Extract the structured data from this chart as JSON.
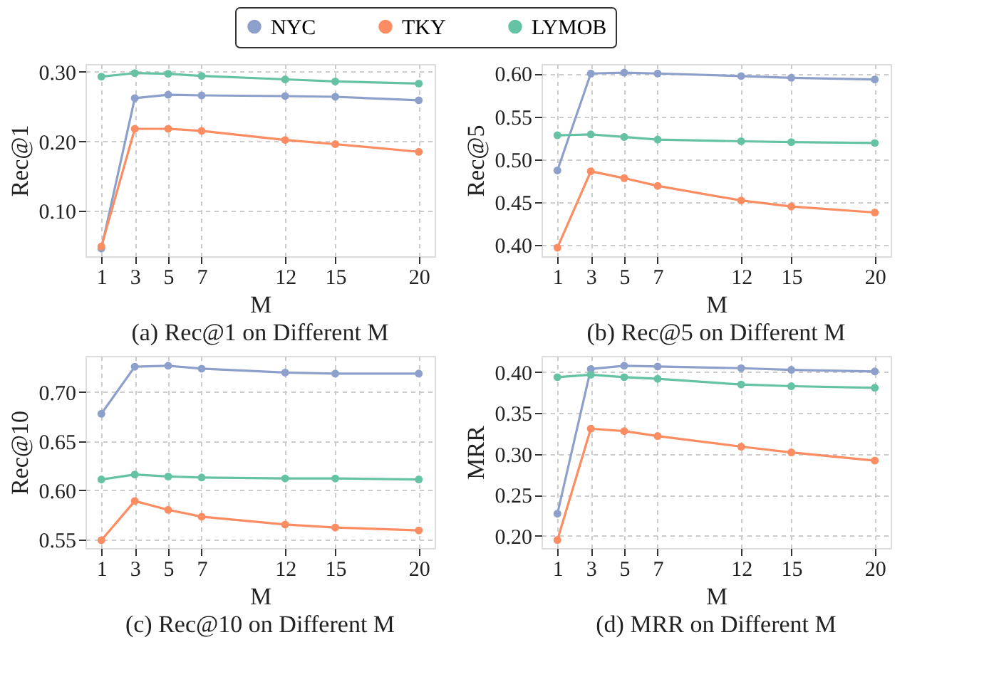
{
  "chart_data": [
    {
      "type": "line",
      "title": "(a) Rec@1 on Different M",
      "xlabel": "M",
      "ylabel": "Rec@1",
      "x": [
        1,
        3,
        5,
        7,
        12,
        15,
        20
      ],
      "xlim": [
        0.05,
        20.95
      ],
      "xticks": [
        1,
        3,
        5,
        7,
        12,
        15,
        20
      ],
      "ylim": [
        0.035,
        0.311
      ],
      "yticks": [
        {
          "value": 0.1,
          "label": "0.10"
        },
        {
          "value": 0.2,
          "label": "0.20"
        },
        {
          "value": 0.3,
          "label": "0.30"
        }
      ],
      "grid": true,
      "legend": "top",
      "marker": "circle",
      "line_style": "solid",
      "series": [
        {
          "name": "NYC",
          "color": "#8da0cb",
          "values": [
            0.046,
            0.262,
            0.267,
            0.266,
            0.265,
            0.264,
            0.259
          ]
        },
        {
          "name": "TKY",
          "color": "#fc8d62",
          "values": [
            0.049,
            0.218,
            0.218,
            0.215,
            0.202,
            0.196,
            0.185
          ]
        },
        {
          "name": "LYMOB",
          "color": "#66c2a5",
          "values": [
            0.293,
            0.298,
            0.297,
            0.294,
            0.289,
            0.286,
            0.283
          ]
        }
      ]
    },
    {
      "type": "line",
      "title": "(b) Rec@5 on Different M",
      "xlabel": "M",
      "ylabel": "Rec@5",
      "x": [
        1,
        3,
        5,
        7,
        12,
        15,
        20
      ],
      "xlim": [
        0.05,
        20.95
      ],
      "xticks": [
        1,
        3,
        5,
        7,
        12,
        15,
        20
      ],
      "ylim": [
        0.387,
        0.611
      ],
      "yticks": [
        {
          "value": 0.4,
          "label": "0.40"
        },
        {
          "value": 0.45,
          "label": "0.45"
        },
        {
          "value": 0.5,
          "label": "0.50"
        },
        {
          "value": 0.55,
          "label": "0.55"
        },
        {
          "value": 0.6,
          "label": "0.60"
        }
      ],
      "grid": true,
      "marker": "circle",
      "line_style": "solid",
      "series": [
        {
          "name": "NYC",
          "color": "#8da0cb",
          "values": [
            0.487,
            0.6,
            0.601,
            0.6,
            0.597,
            0.595,
            0.593
          ]
        },
        {
          "name": "TKY",
          "color": "#fc8d62",
          "values": [
            0.397,
            0.486,
            0.478,
            0.469,
            0.452,
            0.445,
            0.438
          ]
        },
        {
          "name": "LYMOB",
          "color": "#66c2a5",
          "values": [
            0.528,
            0.529,
            0.526,
            0.523,
            0.521,
            0.52,
            0.519
          ]
        }
      ]
    },
    {
      "type": "line",
      "title": "(c) Rec@10 on Different M",
      "xlabel": "M",
      "ylabel": "Rec@10",
      "x": [
        1,
        3,
        5,
        7,
        12,
        15,
        20
      ],
      "xlim": [
        0.05,
        20.95
      ],
      "xticks": [
        1,
        3,
        5,
        7,
        12,
        15,
        20
      ],
      "ylim": [
        0.541,
        0.737
      ],
      "yticks": [
        {
          "value": 0.55,
          "label": "0.55"
        },
        {
          "value": 0.6,
          "label": "0.60"
        },
        {
          "value": 0.65,
          "label": "0.65"
        },
        {
          "value": 0.7,
          "label": "0.70"
        }
      ],
      "grid": true,
      "marker": "circle",
      "line_style": "solid",
      "series": [
        {
          "name": "NYC",
          "color": "#8da0cb",
          "values": [
            0.678,
            0.726,
            0.727,
            0.724,
            0.72,
            0.719,
            0.719
          ]
        },
        {
          "name": "TKY",
          "color": "#fc8d62",
          "values": [
            0.549,
            0.589,
            0.58,
            0.573,
            0.565,
            0.562,
            0.559
          ]
        },
        {
          "name": "LYMOB",
          "color": "#66c2a5",
          "values": [
            0.611,
            0.616,
            0.614,
            0.613,
            0.612,
            0.612,
            0.611
          ]
        }
      ]
    },
    {
      "type": "line",
      "title": "(d) MRR on Different M",
      "xlabel": "M",
      "ylabel": "MRR",
      "x": [
        1,
        3,
        5,
        7,
        12,
        15,
        20
      ],
      "xlim": [
        0.05,
        20.95
      ],
      "xticks": [
        1,
        3,
        5,
        7,
        12,
        15,
        20
      ],
      "ylim": [
        0.185,
        0.42
      ],
      "yticks": [
        {
          "value": 0.2,
          "label": "0.20"
        },
        {
          "value": 0.25,
          "label": "0.25"
        },
        {
          "value": 0.3,
          "label": "0.30"
        },
        {
          "value": 0.35,
          "label": "0.35"
        },
        {
          "value": 0.4,
          "label": "0.40"
        }
      ],
      "grid": true,
      "marker": "circle",
      "line_style": "solid",
      "series": [
        {
          "name": "NYC",
          "color": "#8da0cb",
          "values": [
            0.227,
            0.404,
            0.408,
            0.407,
            0.405,
            0.403,
            0.401
          ]
        },
        {
          "name": "TKY",
          "color": "#fc8d62",
          "values": [
            0.195,
            0.331,
            0.328,
            0.322,
            0.309,
            0.302,
            0.292
          ]
        },
        {
          "name": "LYMOB",
          "color": "#66c2a5",
          "values": [
            0.394,
            0.397,
            0.394,
            0.392,
            0.385,
            0.383,
            0.381
          ]
        }
      ]
    }
  ]
}
